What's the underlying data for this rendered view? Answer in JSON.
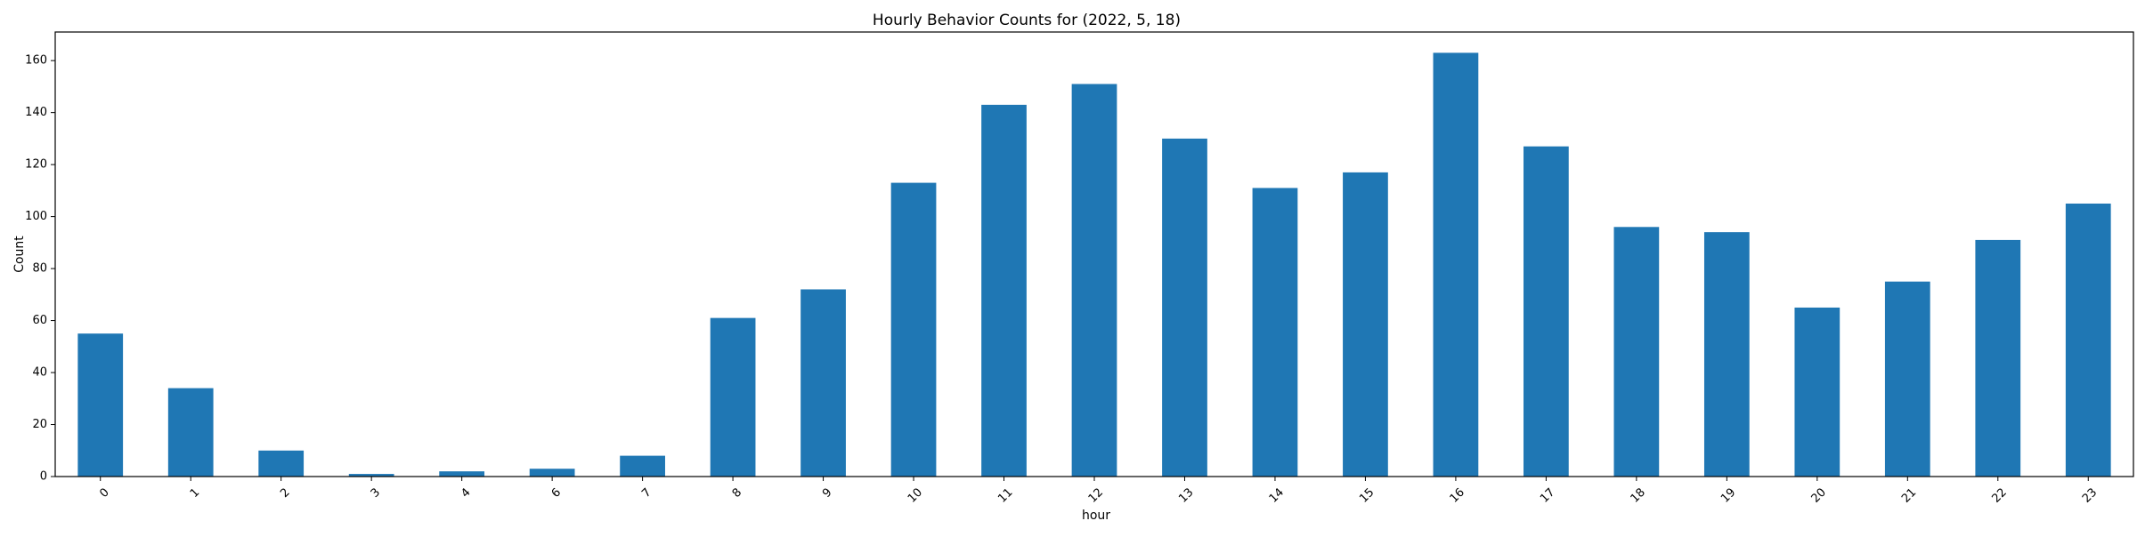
{
  "chart_data": {
    "type": "bar",
    "title": "Hourly Behavior Counts for (2022, 5, 18)",
    "xlabel": "hour",
    "ylabel": "Count",
    "categories": [
      "0",
      "1",
      "2",
      "3",
      "4",
      "6",
      "7",
      "8",
      "9",
      "10",
      "11",
      "12",
      "13",
      "14",
      "15",
      "16",
      "17",
      "18",
      "19",
      "20",
      "21",
      "22",
      "23"
    ],
    "values": [
      55,
      34,
      10,
      1,
      2,
      3,
      8,
      61,
      72,
      113,
      143,
      151,
      130,
      111,
      117,
      163,
      127,
      96,
      94,
      65,
      75,
      91,
      105
    ],
    "ylim": [
      0,
      171
    ],
    "yticks": [
      "0",
      "20",
      "40",
      "60",
      "80",
      "100",
      "120",
      "140",
      "160"
    ],
    "bar_color": "#1f77b4",
    "grid": false,
    "legend": "none"
  }
}
